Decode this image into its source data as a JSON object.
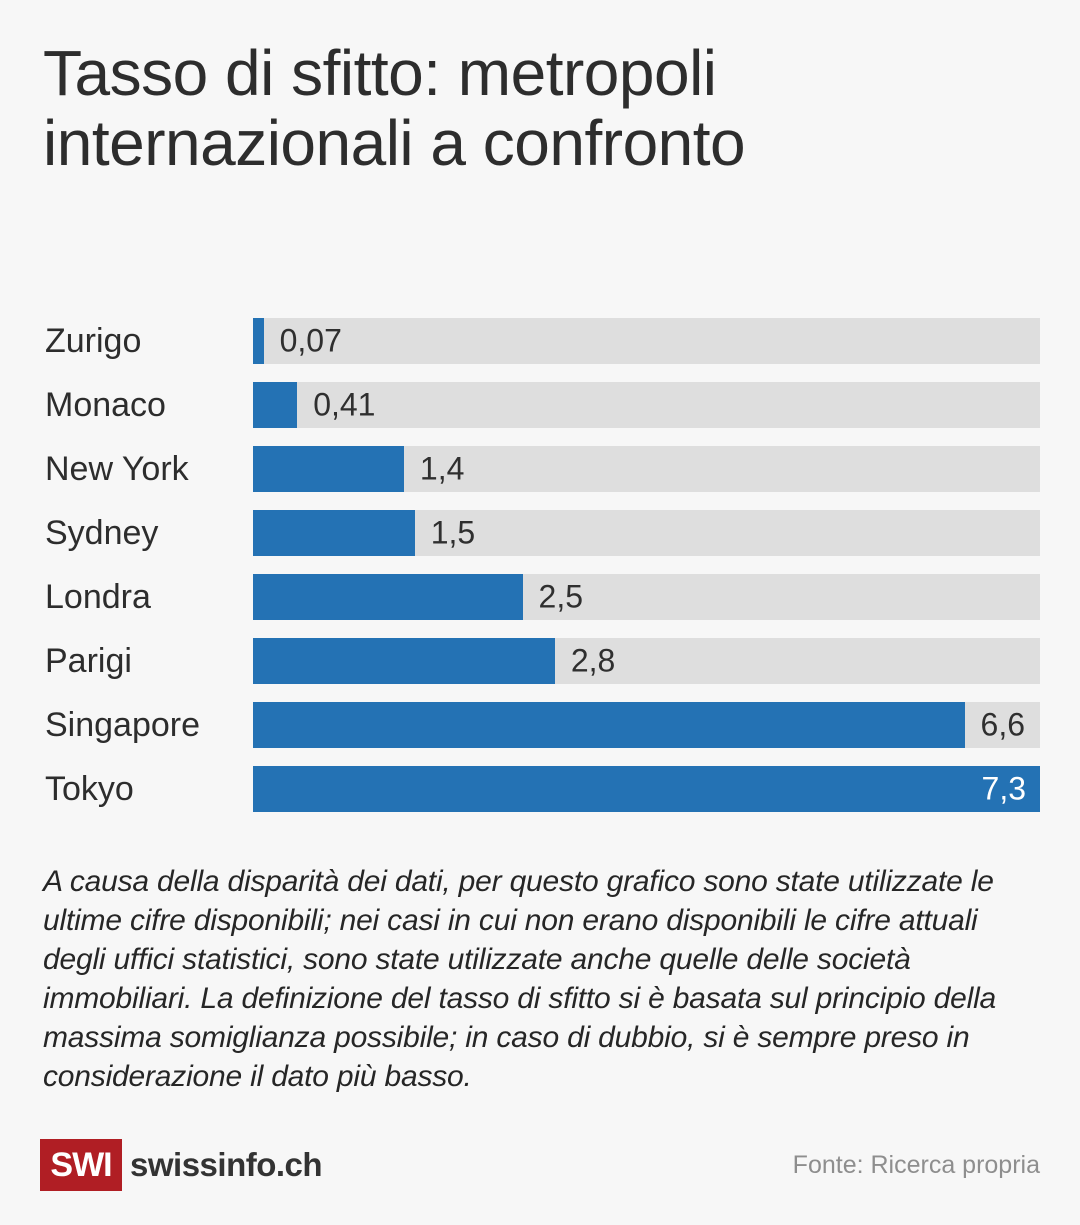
{
  "page": {
    "title": "Tasso di sfitto: metropoli internazionali a confronto",
    "footnote": "A causa della disparità dei dati, per questo grafico sono state utilizzate le ultime cifre disponibili; nei casi in cui non erano disponibili le cifre attuali degli uffici statistici, sono state utilizzate anche quelle delle società immobiliari. La definizione del tasso di sfitto si è basata sul principio della massima somiglianza possibile; in caso di dubbio, si è sempre preso in considerazione il dato più basso.",
    "footer": {
      "logo_text": "SWI",
      "brand": "swissinfo.ch",
      "source": "Fonte: Ricerca propria"
    }
  },
  "colors": {
    "background": "#f7f7f7",
    "bar_fill": "#2472b4",
    "bar_track": "#dedede",
    "text_dark": "#2d2d2d",
    "logo_red": "#b01e24",
    "source_gray": "#8e8e8e"
  },
  "chart_data": {
    "type": "bar",
    "orientation": "horizontal",
    "title": "Tasso di sfitto: metropoli internazionali a confronto",
    "categories": [
      "Zurigo",
      "Monaco",
      "New York",
      "Sydney",
      "Londra",
      "Parigi",
      "Singapore",
      "Tokyo"
    ],
    "values": [
      0.07,
      0.41,
      1.4,
      1.5,
      2.5,
      2.8,
      6.6,
      7.3
    ],
    "value_labels": [
      "0,07",
      "0,41",
      "1,4",
      "1,5",
      "2,5",
      "2,8",
      "6,6",
      "7,3"
    ],
    "xlim": [
      0,
      7.3
    ],
    "xlabel": "",
    "ylabel": "",
    "grid": false,
    "legend": false
  }
}
